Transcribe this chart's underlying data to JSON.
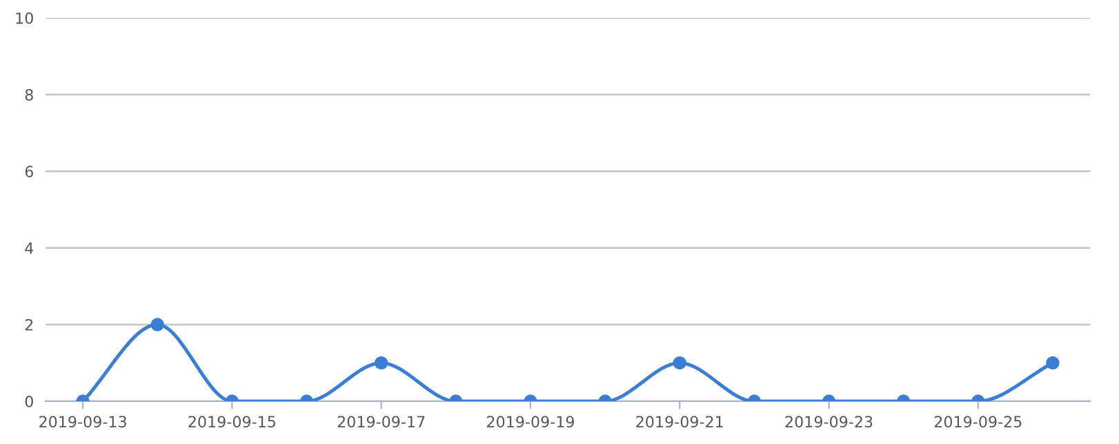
{
  "chart_data": {
    "type": "line",
    "x": [
      "2019-09-13",
      "2019-09-14",
      "2019-09-15",
      "2019-09-16",
      "2019-09-17",
      "2019-09-18",
      "2019-09-19",
      "2019-09-20",
      "2019-09-21",
      "2019-09-22",
      "2019-09-23",
      "2019-09-24",
      "2019-09-25",
      "2019-09-26"
    ],
    "series": [
      {
        "color": "#3a7fd5",
        "values": [
          0,
          2,
          0,
          0,
          1,
          0,
          0,
          0,
          1,
          0,
          0,
          0,
          0,
          1
        ]
      }
    ],
    "xlim": [
      "2019-09-12T12:00",
      "2019-09-26T12:00"
    ],
    "xticks": [
      "2019-09-13",
      "2019-09-15",
      "2019-09-17",
      "2019-09-19",
      "2019-09-21",
      "2019-09-23",
      "2019-09-25"
    ],
    "ylim": [
      0,
      10
    ],
    "yticks": [
      0,
      2,
      4,
      6,
      8,
      10
    ],
    "grid": "y",
    "marker": "circle",
    "line_style": "solid"
  }
}
